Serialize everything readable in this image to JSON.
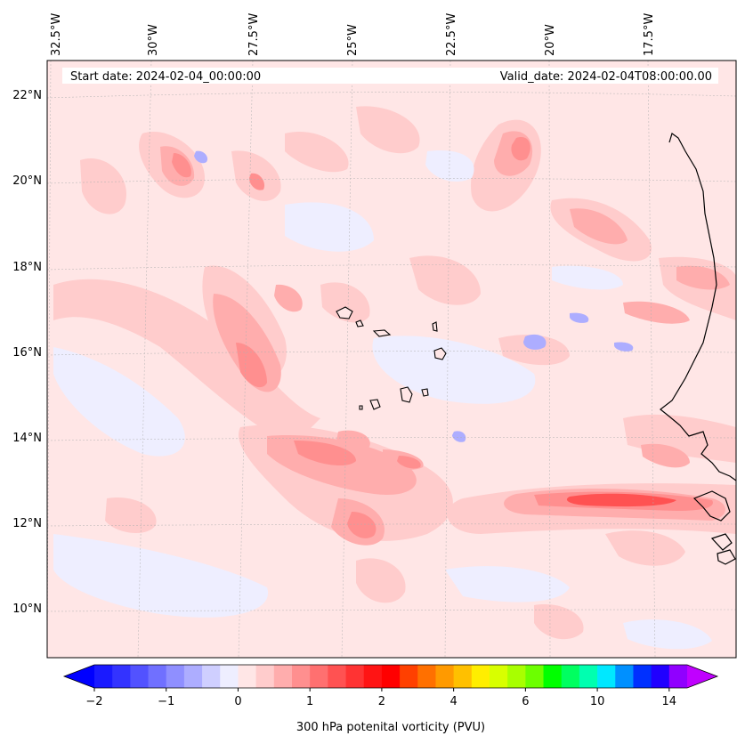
{
  "map": {
    "start_date": "Start date: 2024-02-04_00:00:00",
    "valid_date": "Valid_date: 2024-02-04T08:00:00.00",
    "lon_labels": [
      "32.5°W",
      "30°W",
      "27.5°W",
      "25°W",
      "22.5°W",
      "20°W",
      "17.5°W"
    ],
    "lat_labels": [
      "22°N",
      "20°N",
      "18°N",
      "16°N",
      "14°N",
      "12°N",
      "10°N"
    ],
    "background_color": "#ffe6e6"
  },
  "colorbar": {
    "label": "300 hPa potenital vorticity (PVU)",
    "tick_labels": [
      "−2",
      "−1",
      "0",
      "1",
      "2",
      "4",
      "6",
      "10",
      "14"
    ],
    "colors": [
      "#1a1aff",
      "#3333ff",
      "#5252ff",
      "#7070ff",
      "#8f8fff",
      "#adadff",
      "#cfcfff",
      "#eeeeff",
      "#ffe6e6",
      "#ffcccc",
      "#ffadad",
      "#ff8f8f",
      "#ff7070",
      "#ff5252",
      "#ff3333",
      "#ff1414",
      "#ff0000",
      "#ff4000",
      "#ff7000",
      "#ff9a00",
      "#ffc000",
      "#ffee00",
      "#d8ff00",
      "#a8ff00",
      "#6cff00",
      "#00ff00",
      "#00ff60",
      "#00ffb0",
      "#00e8ff",
      "#0090ff",
      "#0030ff",
      "#2000ff",
      "#9000ff"
    ],
    "under_color": "#0000ff",
    "over_color": "#c000ff"
  }
}
